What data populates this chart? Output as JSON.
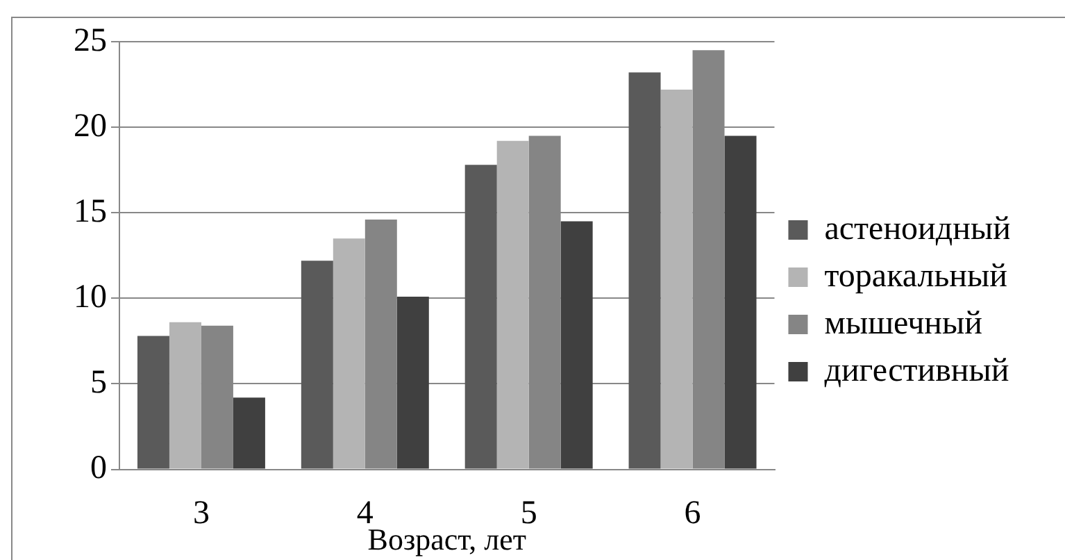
{
  "chart_data": {
    "type": "bar",
    "xlabel": "Возраст, лет",
    "categories": [
      "3",
      "4",
      "5",
      "6"
    ],
    "series": [
      {
        "name": "астеноидный",
        "color": "#5a5a5a",
        "values": [
          7.8,
          12.2,
          17.8,
          23.2
        ]
      },
      {
        "name": "торакальный",
        "color": "#b4b4b4",
        "values": [
          8.6,
          13.5,
          19.2,
          22.2
        ]
      },
      {
        "name": "мышечный",
        "color": "#858585",
        "values": [
          8.4,
          14.6,
          19.5,
          24.5
        ]
      },
      {
        "name": "дигестивный",
        "color": "#404040",
        "values": [
          4.2,
          10.1,
          14.5,
          19.5
        ]
      }
    ],
    "ylim": [
      0,
      25
    ],
    "yticks": [
      0,
      5,
      10,
      15,
      20,
      25
    ],
    "grid": "y",
    "legend": "right"
  }
}
